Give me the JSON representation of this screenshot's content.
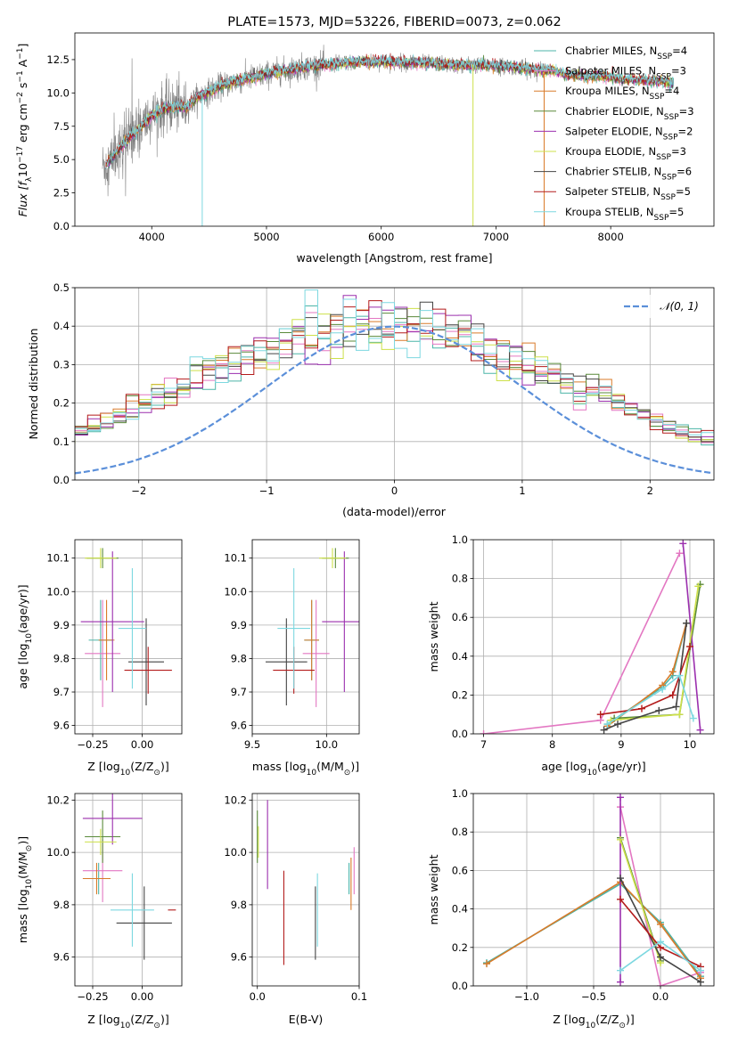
{
  "palette": {
    "chabrier_miles": "#4cb5a8",
    "salpeter_miles": "#e377c2",
    "kroupa_miles": "#d97b2a",
    "chabrier_elodie": "#5a8a3a",
    "salpeter_elodie": "#9b2fae",
    "kroupa_elodie": "#cde04a",
    "chabrier_stelib": "#444444",
    "salpeter_stelib": "#b31b1b",
    "kroupa_stelib": "#7dd8e0",
    "data_gray": "#808080",
    "gaussian": "#5b8fd9",
    "grid": "#b0b0b0"
  },
  "chart_data": [
    {
      "id": "spectrum",
      "type": "line",
      "title": "PLATE=1573, MJD=53226, FIBERID=0073, z=0.062",
      "xlabel": "wavelength [Angstrom, rest frame]",
      "ylabel_parts": [
        "Flux [f",
        "λ",
        "10",
        "−17",
        " erg cm",
        "−2",
        " s",
        "−1",
        " A",
        "−1",
        "]"
      ],
      "xlim": [
        3330,
        8900
      ],
      "ylim": [
        0,
        14.5
      ],
      "xticks": [
        4000,
        5000,
        6000,
        7000,
        8000
      ],
      "yticks": [
        0.0,
        2.5,
        5.0,
        7.5,
        10.0,
        12.5
      ],
      "grid": false,
      "legend_position": "right",
      "continuum": {
        "x": [
          3600,
          3700,
          3800,
          3900,
          4000,
          4100,
          4200,
          4300,
          4400,
          4500,
          4600,
          4700,
          4800,
          4900,
          5000,
          5100,
          5200,
          5300,
          5400,
          5500,
          5600,
          5700,
          5800,
          5900,
          6000,
          6100,
          6200,
          6300,
          6400,
          6500,
          6600,
          6700,
          6800,
          6900,
          7000,
          7100,
          7200,
          7300,
          7400,
          7500,
          7600,
          7700,
          7800,
          7900,
          8000,
          8100,
          8200,
          8300,
          8400,
          8500
        ],
        "y": [
          4.6,
          5.6,
          6.6,
          7.4,
          8.3,
          8.8,
          9.0,
          8.9,
          9.7,
          10.1,
          10.5,
          10.8,
          11.0,
          11.2,
          11.4,
          11.6,
          11.7,
          11.9,
          12.0,
          12.1,
          12.2,
          12.3,
          12.3,
          12.3,
          12.4,
          12.3,
          12.3,
          12.3,
          12.2,
          12.2,
          12.1,
          12.1,
          12.1,
          12.1,
          12.0,
          12.0,
          11.9,
          11.8,
          11.7,
          11.7,
          11.4,
          11.3,
          11.2,
          11.3,
          11.2,
          11.0,
          11.0,
          10.9,
          10.9,
          10.8
        ]
      },
      "data_range": [
        3570,
        7430
      ],
      "model_range": [
        3600,
        8550
      ],
      "drops": [
        {
          "x": 4440,
          "y": 0.0,
          "series": "Kroupa STELIB"
        },
        {
          "x": 6800,
          "y": 0.0,
          "series": "Kroupa ELODIE"
        },
        {
          "x": 7420,
          "y": 0.0,
          "series": "Kroupa MILES"
        }
      ],
      "series": [
        {
          "key": "chabrier_miles",
          "name_main": "Chabrier MILES, N",
          "name_sub": "SSP",
          "name_tail": "=4"
        },
        {
          "key": "salpeter_miles",
          "name_main": "Salpeter MILES, N",
          "name_sub": "SSP",
          "name_tail": "=3"
        },
        {
          "key": "kroupa_miles",
          "name_main": "Kroupa MILES, N",
          "name_sub": "SSP",
          "name_tail": "=4"
        },
        {
          "key": "chabrier_elodie",
          "name_main": "Chabrier ELODIE, N",
          "name_sub": "SSP",
          "name_tail": "=3"
        },
        {
          "key": "salpeter_elodie",
          "name_main": "Salpeter ELODIE, N",
          "name_sub": "SSP",
          "name_tail": "=2"
        },
        {
          "key": "kroupa_elodie",
          "name_main": "Kroupa ELODIE, N",
          "name_sub": "SSP",
          "name_tail": "=3"
        },
        {
          "key": "chabrier_stelib",
          "name_main": "Chabrier STELIB, N",
          "name_sub": "SSP",
          "name_tail": "=6"
        },
        {
          "key": "salpeter_stelib",
          "name_main": "Salpeter STELIB, N",
          "name_sub": "SSP",
          "name_tail": "=5"
        },
        {
          "key": "kroupa_stelib",
          "name_main": "Kroupa STELIB, N",
          "name_sub": "SSP",
          "name_tail": "=5"
        }
      ]
    },
    {
      "id": "residuals",
      "type": "histogram",
      "xlabel": "(data-model)/error",
      "ylabel": "Normed distribution",
      "xlim": [
        -2.5,
        2.5
      ],
      "ylim": [
        0,
        0.5
      ],
      "xticks": [
        -2,
        -1,
        0,
        1,
        2
      ],
      "xtick_labels": [
        "−2",
        "−1",
        "0",
        "1",
        "2"
      ],
      "yticks": [
        0.0,
        0.1,
        0.2,
        0.3,
        0.4,
        0.5
      ],
      "grid": true,
      "legend_position": "top-right",
      "legend_label": "𝒩(0, 1)",
      "bin_width": 0.1,
      "envelope": [
        0.021,
        0.024,
        0.028,
        0.032,
        0.037,
        0.043,
        0.051,
        0.057,
        0.064,
        0.071,
        0.081,
        0.089,
        0.098,
        0.109,
        0.118,
        0.129,
        0.142,
        0.153,
        0.168,
        0.182,
        0.196,
        0.214,
        0.228,
        0.242,
        0.261,
        0.274,
        0.289,
        0.304,
        0.319,
        0.333,
        0.343,
        0.356,
        0.369,
        0.381,
        0.388,
        0.393,
        0.398,
        0.402,
        0.401,
        0.399,
        0.398,
        0.395,
        0.391,
        0.384,
        0.378,
        0.367,
        0.357,
        0.343,
        0.331,
        0.318,
        0.302,
        0.288,
        0.273,
        0.257,
        0.243,
        0.228,
        0.211,
        0.196,
        0.181,
        0.166,
        0.152,
        0.138,
        0.126,
        0.113,
        0.101,
        0.091,
        0.081,
        0.071,
        0.062,
        0.053,
        0.046,
        0.04,
        0.034,
        0.029,
        0.024,
        0.021,
        0.018,
        0.015,
        0.013,
        0.011
      ],
      "envelope_x0": -4.0
    },
    {
      "id": "age_vs_Z",
      "type": "errorbar",
      "xlabel_parts": [
        "Z [log",
        "10",
        "(Z/Z",
        "⊙",
        ")]"
      ],
      "ylabel_parts": [
        "age  [log",
        "10",
        "(age/yr)]"
      ],
      "xlim": [
        -0.34,
        0.2
      ],
      "ylim": [
        9.575,
        10.155
      ],
      "xticks": [
        -0.25,
        0.0
      ],
      "xtick_labels": [
        "−0.25",
        "0.00"
      ],
      "yticks": [
        9.6,
        9.7,
        9.8,
        9.9,
        10.0,
        10.1
      ],
      "grid": true,
      "points": [
        {
          "key": "chabrier_miles",
          "x": -0.21,
          "xerr": 0.06,
          "y": 9.855,
          "yerr": 0.12
        },
        {
          "key": "salpeter_miles",
          "x": -0.2,
          "xerr": 0.09,
          "y": 9.815,
          "yerr": 0.16
        },
        {
          "key": "kroupa_miles",
          "x": -0.18,
          "xerr": 0.04,
          "y": 9.855,
          "yerr": 0.12
        },
        {
          "key": "chabrier_elodie",
          "x": -0.2,
          "xerr": 0.08,
          "y": 10.1,
          "yerr": 0.03
        },
        {
          "key": "salpeter_elodie",
          "x": -0.15,
          "xerr": 0.16,
          "y": 9.91,
          "yerr": 0.21
        },
        {
          "key": "kroupa_elodie",
          "x": -0.21,
          "xerr": 0.08,
          "y": 10.1,
          "yerr": 0.03
        },
        {
          "key": "chabrier_stelib",
          "x": 0.02,
          "xerr": 0.09,
          "y": 9.79,
          "yerr": 0.13
        },
        {
          "key": "salpeter_stelib",
          "x": 0.03,
          "xerr": 0.12,
          "y": 9.765,
          "yerr": 0.07
        },
        {
          "key": "kroupa_stelib",
          "x": -0.05,
          "xerr": 0.07,
          "y": 9.89,
          "yerr": 0.18
        }
      ]
    },
    {
      "id": "age_vs_mass",
      "type": "errorbar",
      "xlabel_parts": [
        "mass [log",
        "10",
        "(M/M",
        "⊙",
        ")]"
      ],
      "xlim": [
        9.5,
        10.22
      ],
      "ylim": [
        9.575,
        10.155
      ],
      "xticks": [
        9.5,
        10.0
      ],
      "xtick_labels": [
        "9.5",
        "10.0"
      ],
      "yticks": [
        9.6,
        9.7,
        9.8,
        9.9,
        10.0,
        10.1
      ],
      "grid": true,
      "points": [
        {
          "key": "chabrier_miles",
          "x": 9.9,
          "xerr": 0.05,
          "y": 9.855,
          "yerr": 0.12
        },
        {
          "key": "salpeter_miles",
          "x": 9.93,
          "xerr": 0.09,
          "y": 9.815,
          "yerr": 0.16
        },
        {
          "key": "kroupa_miles",
          "x": 9.9,
          "xerr": 0.05,
          "y": 9.855,
          "yerr": 0.12
        },
        {
          "key": "chabrier_elodie",
          "x": 10.06,
          "xerr": 0.09,
          "y": 10.1,
          "yerr": 0.03
        },
        {
          "key": "salpeter_elodie",
          "x": 10.12,
          "xerr": 0.15,
          "y": 9.91,
          "yerr": 0.21
        },
        {
          "key": "kroupa_elodie",
          "x": 10.04,
          "xerr": 0.09,
          "y": 10.1,
          "yerr": 0.03
        },
        {
          "key": "chabrier_stelib",
          "x": 9.73,
          "xerr": 0.14,
          "y": 9.79,
          "yerr": 0.13
        },
        {
          "key": "salpeter_stelib",
          "x": 9.78,
          "xerr": 0.14,
          "y": 9.765,
          "yerr": 0.07
        },
        {
          "key": "kroupa_stelib",
          "x": 9.78,
          "xerr": 0.11,
          "y": 9.89,
          "yerr": 0.18
        }
      ]
    },
    {
      "id": "mass_weight_vs_age",
      "type": "line",
      "xlabel_parts": [
        "age  [log",
        "10",
        "(age/yr)]"
      ],
      "ylabel": "mass weight",
      "xlim": [
        6.85,
        10.35
      ],
      "ylim": [
        0,
        1.0
      ],
      "xticks": [
        7,
        8,
        9,
        10
      ],
      "yticks": [
        0.0,
        0.2,
        0.4,
        0.6,
        0.8,
        1.0
      ],
      "grid": true,
      "series": [
        {
          "key": "chabrier_miles",
          "x": [
            8.8,
            9.6,
            9.75,
            9.95
          ],
          "y": [
            0.05,
            0.24,
            0.3,
            0.57
          ]
        },
        {
          "key": "salpeter_miles",
          "x": [
            7.0,
            8.7,
            9.85
          ],
          "y": [
            0.0,
            0.07,
            0.93
          ]
        },
        {
          "key": "kroupa_miles",
          "x": [
            8.8,
            9.6,
            9.75,
            9.95
          ],
          "y": [
            0.04,
            0.25,
            0.32,
            0.57
          ]
        },
        {
          "key": "chabrier_elodie",
          "x": [
            8.9,
            9.85,
            10.15
          ],
          "y": [
            0.08,
            0.1,
            0.77
          ]
        },
        {
          "key": "salpeter_elodie",
          "x": [
            9.9,
            10.15
          ],
          "y": [
            0.98,
            0.02
          ]
        },
        {
          "key": "kroupa_elodie",
          "x": [
            8.85,
            9.85,
            10.12
          ],
          "y": [
            0.07,
            0.1,
            0.76
          ]
        },
        {
          "key": "chabrier_stelib",
          "x": [
            8.75,
            8.95,
            9.55,
            9.8,
            9.95
          ],
          "y": [
            0.02,
            0.05,
            0.12,
            0.14,
            0.57
          ]
        },
        {
          "key": "salpeter_stelib",
          "x": [
            8.7,
            9.3,
            9.75,
            10.0
          ],
          "y": [
            0.1,
            0.13,
            0.2,
            0.45
          ]
        },
        {
          "key": "kroupa_stelib",
          "x": [
            8.8,
            9.6,
            9.85,
            10.05
          ],
          "y": [
            0.05,
            0.23,
            0.3,
            0.08
          ]
        }
      ]
    },
    {
      "id": "mass_vs_Z",
      "type": "errorbar",
      "xlabel_parts": [
        "Z [log",
        "10",
        "(Z/Z",
        "⊙",
        ")]"
      ],
      "ylabel_parts": [
        "mass [log",
        "10",
        "(M/M",
        "⊙",
        ")]"
      ],
      "xlim": [
        -0.34,
        0.2
      ],
      "ylim": [
        9.49,
        10.225
      ],
      "xticks": [
        -0.25,
        0.0
      ],
      "xtick_labels": [
        "−0.25",
        "0.00"
      ],
      "yticks": [
        9.6,
        9.8,
        10.0,
        10.2
      ],
      "grid": true,
      "points": [
        {
          "key": "chabrier_miles",
          "x": -0.22,
          "xerr": 0.06,
          "y": 9.9,
          "yerr": 0.06
        },
        {
          "key": "salpeter_miles",
          "x": -0.2,
          "xerr": 0.1,
          "y": 9.93,
          "yerr": 0.12
        },
        {
          "key": "kroupa_miles",
          "x": -0.23,
          "xerr": 0.07,
          "y": 9.9,
          "yerr": 0.06
        },
        {
          "key": "chabrier_elodie",
          "x": -0.2,
          "xerr": 0.09,
          "y": 10.06,
          "yerr": 0.1
        },
        {
          "key": "salpeter_elodie",
          "x": -0.15,
          "xerr": 0.15,
          "y": 10.13,
          "yerr": 0.1
        },
        {
          "key": "kroupa_elodie",
          "x": -0.21,
          "xerr": 0.08,
          "y": 10.04,
          "yerr": 0.05
        },
        {
          "key": "chabrier_stelib",
          "x": 0.01,
          "xerr": 0.14,
          "y": 9.73,
          "yerr": 0.14
        },
        {
          "key": "salpeter_stelib",
          "x": 0.15,
          "xerr": 0.02,
          "y": 9.78,
          "yerr": 0.0
        },
        {
          "key": "kroupa_stelib",
          "x": -0.05,
          "xerr": 0.11,
          "y": 9.78,
          "yerr": 0.14
        }
      ]
    },
    {
      "id": "mass_vs_ebv",
      "type": "errorbar",
      "xlabel": "E(B-V)",
      "xlim": [
        -0.005,
        0.1
      ],
      "ylim": [
        9.49,
        10.225
      ],
      "xticks": [
        0.0,
        0.1
      ],
      "xtick_labels": [
        "0.0",
        "0.1"
      ],
      "yticks": [
        9.6,
        9.8,
        10.0,
        10.2
      ],
      "grid": true,
      "points": [
        {
          "key": "chabrier_miles",
          "x": 0.09,
          "y": 9.9,
          "yerr": 0.06
        },
        {
          "key": "salpeter_miles",
          "x": 0.095,
          "y": 9.93,
          "yerr": 0.09
        },
        {
          "key": "kroupa_miles",
          "x": 0.092,
          "y": 9.88,
          "yerr": 0.1
        },
        {
          "key": "chabrier_elodie",
          "x": 0.0,
          "y": 10.06,
          "yerr": 0.1
        },
        {
          "key": "salpeter_elodie",
          "x": 0.01,
          "y": 10.03,
          "yerr": 0.17
        },
        {
          "key": "kroupa_elodie",
          "x": 0.001,
          "y": 10.04,
          "yerr": 0.06
        },
        {
          "key": "chabrier_stelib",
          "x": 0.057,
          "y": 9.73,
          "yerr": 0.14
        },
        {
          "key": "salpeter_stelib",
          "x": 0.026,
          "y": 9.75,
          "yerr": 0.18
        },
        {
          "key": "kroupa_stelib",
          "x": 0.059,
          "y": 9.78,
          "yerr": 0.14
        }
      ]
    },
    {
      "id": "mass_weight_vs_Z",
      "type": "line",
      "xlabel_parts": [
        "Z [log",
        "10",
        "(Z/Z",
        "⊙",
        ")]"
      ],
      "ylabel": "mass weight",
      "xlim": [
        -1.4,
        0.4
      ],
      "ylim": [
        0,
        1.0
      ],
      "xticks": [
        -1.0,
        -0.5,
        0.0
      ],
      "xtick_labels": [
        "−1.0",
        "−0.5",
        "0.0"
      ],
      "yticks": [
        0.0,
        0.2,
        0.4,
        0.6,
        0.8,
        1.0
      ],
      "grid": true,
      "series": [
        {
          "key": "chabrier_miles",
          "x": [
            -1.3,
            -0.3,
            0.0,
            0.3
          ],
          "y": [
            0.12,
            0.53,
            0.33,
            0.05
          ]
        },
        {
          "key": "salpeter_miles",
          "x": [
            -0.3,
            0.0,
            0.3
          ],
          "y": [
            0.93,
            0.0,
            0.07
          ]
        },
        {
          "key": "kroupa_miles",
          "x": [
            -1.3,
            -0.3,
            0.0,
            0.3
          ],
          "y": [
            0.115,
            0.54,
            0.32,
            0.04
          ]
        },
        {
          "key": "chabrier_elodie",
          "x": [
            -0.3,
            0.0
          ],
          "y": [
            0.77,
            0.13
          ]
        },
        {
          "key": "salpeter_elodie",
          "x": [
            -0.3,
            -0.3
          ],
          "y": [
            0.98,
            0.02
          ]
        },
        {
          "key": "kroupa_elodie",
          "x": [
            -0.3,
            0.0
          ],
          "y": [
            0.76,
            0.12
          ]
        },
        {
          "key": "chabrier_stelib",
          "x": [
            -0.3,
            0.0,
            0.3
          ],
          "y": [
            0.56,
            0.15,
            0.02
          ]
        },
        {
          "key": "salpeter_stelib",
          "x": [
            -0.3,
            0.0,
            0.3
          ],
          "y": [
            0.45,
            0.2,
            0.1
          ]
        },
        {
          "key": "kroupa_stelib",
          "x": [
            -0.3,
            0.0,
            0.3
          ],
          "y": [
            0.08,
            0.23,
            0.08
          ]
        }
      ]
    }
  ]
}
